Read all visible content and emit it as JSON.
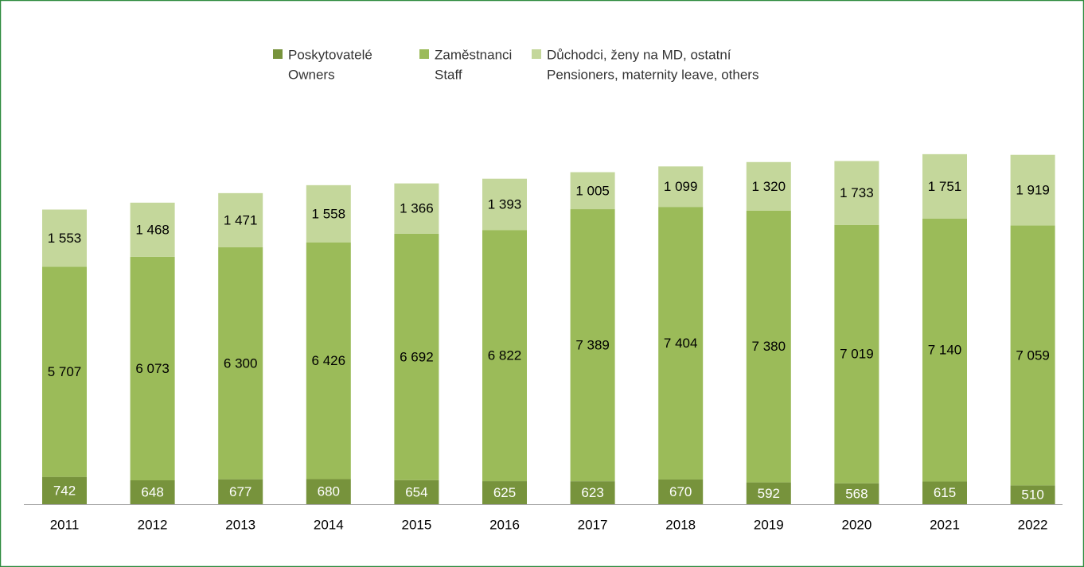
{
  "chart_data": {
    "type": "stacked-bar",
    "categories": [
      "2011",
      "2012",
      "2013",
      "2014",
      "2015",
      "2016",
      "2017",
      "2018",
      "2019",
      "2020",
      "2021",
      "2022"
    ],
    "series": [
      {
        "name": [
          "Poskytovatelé",
          "Owners"
        ],
        "color": "#77933c",
        "values": [
          742,
          648,
          677,
          680,
          654,
          625,
          623,
          670,
          592,
          568,
          615,
          510
        ]
      },
      {
        "name": [
          "Zaměstnanci",
          "Staff"
        ],
        "color": "#9bbb59",
        "values": [
          5707,
          6073,
          6300,
          6426,
          6692,
          6822,
          7389,
          7404,
          7380,
          7019,
          7140,
          7059
        ],
        "value_labels": [
          "5 707",
          "6 073",
          "6 300",
          "6 426",
          "6 692",
          "6 822",
          "7 389",
          "7 404",
          "7 380",
          "7 019",
          "7 140",
          "7 059"
        ]
      },
      {
        "name": [
          "Důchodci, ženy na MD, ostatní",
          "Pensioners, maternity leave, others"
        ],
        "color": "#c4d79b",
        "values": [
          1553,
          1468,
          1471,
          1558,
          1366,
          1393,
          1005,
          1099,
          1320,
          1733,
          1751,
          1919
        ],
        "value_labels": [
          "1 553",
          "1 468",
          "1 471",
          "1 558",
          "1 366",
          "1 393",
          "1 005",
          "1 099",
          "1 320",
          "1 733",
          "1 751",
          "1 919"
        ]
      }
    ],
    "label_colors": [
      "#ffffff",
      "#000000",
      "#000000"
    ]
  }
}
